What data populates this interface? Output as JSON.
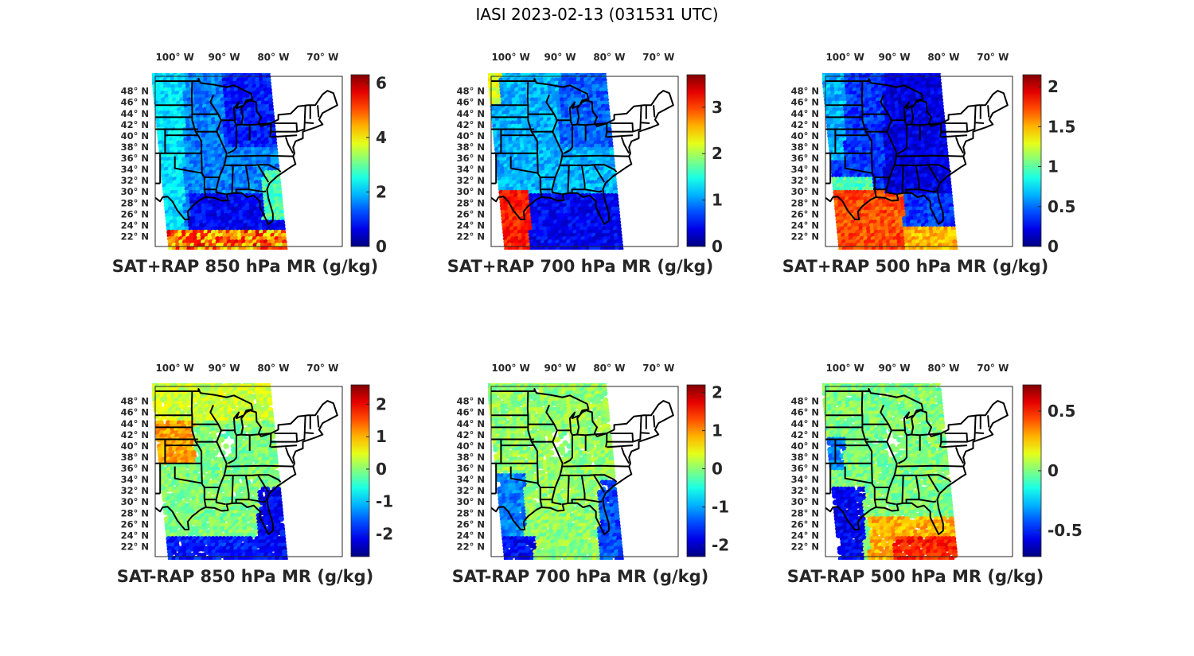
{
  "figure": {
    "title": "IASI 2023-02-13 (031531 UTC)"
  },
  "chart_data": [
    {
      "type": "heatmap",
      "map": true,
      "title": "SAT+RAP 850 hPa MR (g/kg)",
      "lon_ticks": [
        "100° W",
        "90° W",
        "80° W",
        "70° W"
      ],
      "lat_ticks": [
        "48° N",
        "46° N",
        "44° N",
        "42° N",
        "40° N",
        "38° N",
        "36° N",
        "34° N",
        "32° N",
        "30° N",
        "28° N",
        "26° N",
        "24° N",
        "22° N"
      ],
      "colormap": "jet",
      "clim": [
        0,
        6.3
      ],
      "colorbar_ticks": [
        "0",
        "2",
        "4",
        "6"
      ],
      "colorbar_values": [
        0,
        2,
        4,
        6
      ],
      "field": "mostly_low_blue_with_high_south"
    },
    {
      "type": "heatmap",
      "map": true,
      "title": "SAT+RAP 700 hPa MR (g/kg)",
      "lon_ticks": [
        "100° W",
        "90° W",
        "80° W",
        "70° W"
      ],
      "lat_ticks": [
        "48° N",
        "46° N",
        "44° N",
        "42° N",
        "40° N",
        "38° N",
        "36° N",
        "34° N",
        "32° N",
        "30° N",
        "28° N",
        "26° N",
        "24° N",
        "22° N"
      ],
      "colormap": "jet",
      "clim": [
        0,
        3.7
      ],
      "colorbar_ticks": [
        "0",
        "1",
        "2",
        "3"
      ],
      "colorbar_values": [
        0,
        1,
        2,
        3
      ],
      "field": "low_blue_with_high_southwest"
    },
    {
      "type": "heatmap",
      "map": true,
      "title": "SAT+RAP 500 hPa MR (g/kg)",
      "lon_ticks": [
        "100° W",
        "90° W",
        "80° W",
        "70° W"
      ],
      "lat_ticks": [
        "48° N",
        "46° N",
        "44° N",
        "42° N",
        "40° N",
        "38° N",
        "36° N",
        "34° N",
        "32° N",
        "30° N",
        "28° N",
        "26° N",
        "24° N",
        "22° N"
      ],
      "colormap": "jet",
      "clim": [
        0,
        2.15
      ],
      "colorbar_ticks": [
        "0",
        "0.5",
        "1",
        "1.5",
        "2"
      ],
      "colorbar_values": [
        0,
        0.5,
        1,
        1.5,
        2
      ],
      "field": "low_blue_with_high_gulf"
    },
    {
      "type": "heatmap",
      "map": true,
      "title": "SAT-RAP 850 hPa MR (g/kg)",
      "lon_ticks": [
        "100° W",
        "90° W",
        "80° W",
        "70° W"
      ],
      "lat_ticks": [
        "48° N",
        "46° N",
        "44° N",
        "42° N",
        "40° N",
        "38° N",
        "36° N",
        "34° N",
        "32° N",
        "30° N",
        "28° N",
        "26° N",
        "24° N",
        "22° N"
      ],
      "colormap": "jet",
      "clim": [
        -2.7,
        2.6
      ],
      "colorbar_ticks": [
        "-2",
        "-1",
        "0",
        "1",
        "2"
      ],
      "colorbar_values": [
        -2,
        -1,
        0,
        1,
        2
      ],
      "field": "diff_near_zero_positive_plains_negative_south"
    },
    {
      "type": "heatmap",
      "map": true,
      "title": "SAT-RAP 700 hPa MR (g/kg)",
      "lon_ticks": [
        "100° W",
        "90° W",
        "80° W",
        "70° W"
      ],
      "lat_ticks": [
        "48° N",
        "46° N",
        "44° N",
        "42° N",
        "40° N",
        "38° N",
        "36° N",
        "34° N",
        "32° N",
        "30° N",
        "28° N",
        "26° N",
        "24° N",
        "22° N"
      ],
      "colormap": "jet",
      "clim": [
        -2.3,
        2.2
      ],
      "colorbar_ticks": [
        "-2",
        "-1",
        "0",
        "1",
        "2"
      ],
      "colorbar_values": [
        -2,
        -1,
        0,
        1,
        2
      ],
      "field": "diff_near_zero_negative_southwest"
    },
    {
      "type": "heatmap",
      "map": true,
      "title": "SAT-RAP 500 hPa MR (g/kg)",
      "lon_ticks": [
        "100° W",
        "90° W",
        "80° W",
        "70° W"
      ],
      "lat_ticks": [
        "48° N",
        "46° N",
        "44° N",
        "42° N",
        "40° N",
        "38° N",
        "36° N",
        "34° N",
        "32° N",
        "30° N",
        "28° N",
        "26° N",
        "24° N",
        "22° N"
      ],
      "colormap": "jet",
      "clim": [
        -0.72,
        0.72
      ],
      "colorbar_ticks": [
        "-0.5",
        "0",
        "0.5"
      ],
      "colorbar_values": [
        -0.5,
        0,
        0.5
      ],
      "field": "diff_near_zero_negative_texas_positive_gulf"
    }
  ]
}
